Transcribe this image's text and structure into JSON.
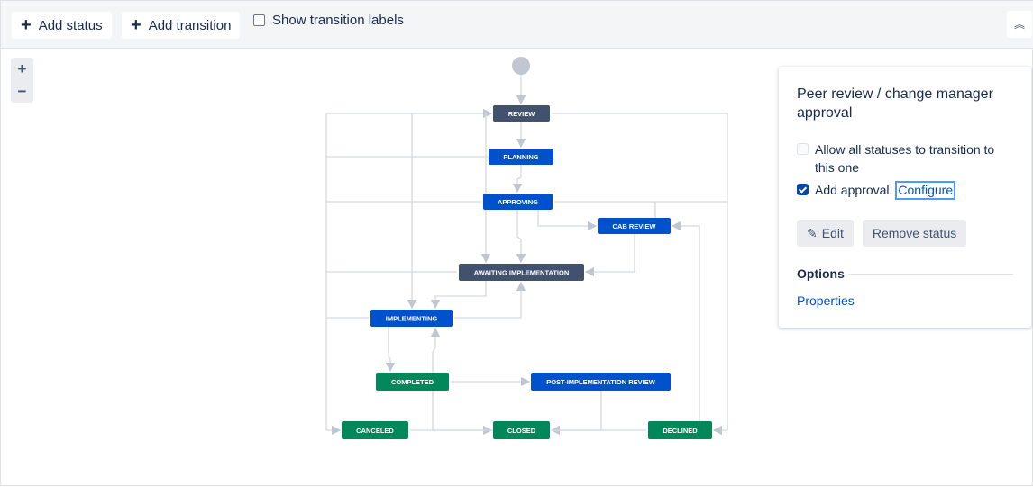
{
  "toolbar": {
    "add_status": "Add status",
    "add_transition": "Add transition",
    "show_labels": "Show transition labels",
    "show_labels_checked": false,
    "collapse_icon": "chevron-double-up-icon"
  },
  "zoom": {
    "in": "+",
    "out": "−"
  },
  "colors": {
    "todo": "#42526e",
    "in_progress": "#0052cc",
    "done": "#00875a",
    "edge": "#c1c7d0"
  },
  "statuses": [
    {
      "label": "REVIEW",
      "category": "todo"
    },
    {
      "label": "PLANNING",
      "category": "in_progress"
    },
    {
      "label": "APPROVING",
      "category": "in_progress"
    },
    {
      "label": "CAB REVIEW",
      "category": "in_progress"
    },
    {
      "label": "AWAITING IMPLEMENTATION",
      "category": "todo"
    },
    {
      "label": "IMPLEMENTING",
      "category": "in_progress"
    },
    {
      "label": "COMPLETED",
      "category": "done"
    },
    {
      "label": "POST-IMPLEMENTATION REVIEW",
      "category": "in_progress"
    },
    {
      "label": "CANCELED",
      "category": "done"
    },
    {
      "label": "CLOSED",
      "category": "done"
    },
    {
      "label": "DECLINED",
      "category": "done"
    }
  ],
  "panel": {
    "title": "Peer review / change manager approval",
    "allow_all": "Allow all statuses to transition to this one",
    "allow_all_checked": false,
    "add_approval": "Add approval.",
    "add_approval_checked": true,
    "configure": "Configure",
    "edit": "Edit",
    "remove": "Remove status",
    "options": "Options",
    "properties": "Properties"
  }
}
